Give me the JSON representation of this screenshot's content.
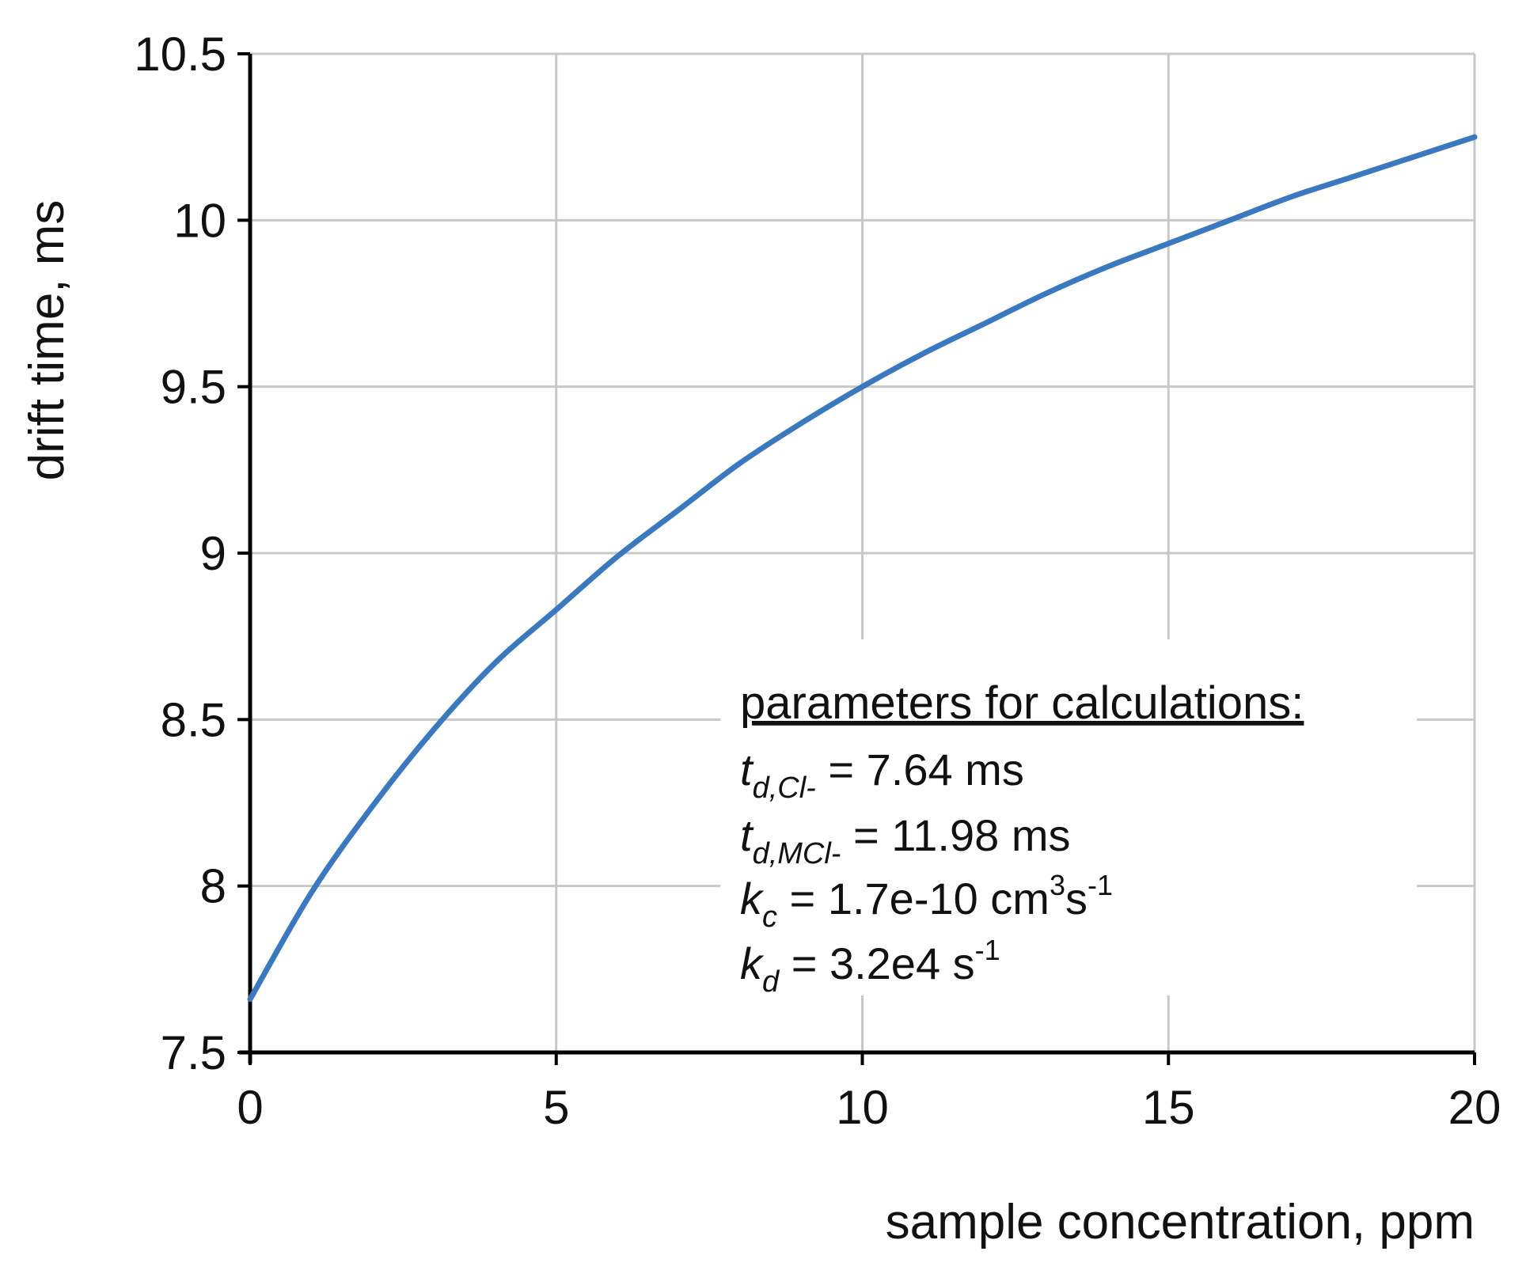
{
  "chart_data": {
    "type": "line",
    "xlabel": "sample concentration, ppm",
    "ylabel": "drift time, ms",
    "xlim": [
      0,
      20
    ],
    "ylim": [
      7.5,
      10.5
    ],
    "x_ticks": [
      "0",
      "5",
      "10",
      "15",
      "20"
    ],
    "y_ticks": [
      "7.5",
      "8",
      "8.5",
      "9",
      "9.5",
      "10",
      "10.5"
    ],
    "grid": true,
    "series": [
      {
        "color": "#3a78c0",
        "x": [
          0,
          1,
          2,
          3,
          4,
          5,
          6,
          7,
          8,
          9,
          10,
          11,
          12,
          13,
          14,
          15,
          16,
          17,
          18,
          19,
          20
        ],
        "y": [
          7.66,
          7.98,
          8.24,
          8.47,
          8.67,
          8.83,
          8.99,
          9.13,
          9.27,
          9.39,
          9.5,
          9.6,
          9.69,
          9.78,
          9.86,
          9.93,
          10.0,
          10.07,
          10.13,
          10.19,
          10.25
        ]
      }
    ],
    "annotation": {
      "title": "parameters for calculations:",
      "lines": [
        {
          "sym": "t",
          "sub": "d,Cl-",
          "text": " = 7.64 ms",
          "sup_unit": ""
        },
        {
          "sym": "t",
          "sub": "d,MCl-",
          "text": " = 11.98 ms",
          "sup_unit": ""
        },
        {
          "sym": "k",
          "sub": "c",
          "text": " = 1.7e-10 cm",
          "sup1": "3",
          "mid": "s",
          "sup2": "-1"
        },
        {
          "sym": "k",
          "sub": "d",
          "text": " = 3.2e4 s",
          "sup2": "-1"
        }
      ]
    }
  }
}
